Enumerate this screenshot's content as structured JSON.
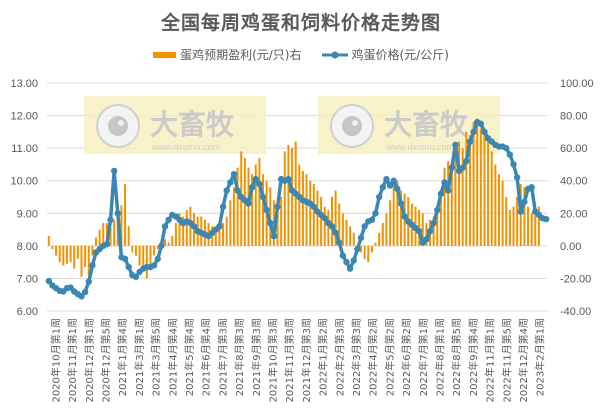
{
  "title": "全国每周鸡蛋和饲料价格走势图",
  "legend": {
    "bar_label": "蛋鸡预期盈利(元/只)右",
    "line_label": "鸡蛋价格(元/公斤)"
  },
  "colors": {
    "bar": "#F39200",
    "line": "#3B87B4",
    "grid": "#D9D9D9",
    "watermark_bg": "#F7F0C3"
  },
  "watermark": {
    "text": "大畜牧",
    "url": "www.dxumu.com"
  },
  "chart_data": {
    "type": "bar+line",
    "title": "全国每周鸡蛋和饲料价格走势图",
    "xlabel": "",
    "ylabel_left": "",
    "ylabel_right": "",
    "ylim_left": [
      6,
      13
    ],
    "ylim_right": [
      -40,
      100
    ],
    "left_ticks": [
      "13.00",
      "12.00",
      "11.00",
      "10.00",
      "9.00",
      "8.00",
      "7.00",
      "6.00"
    ],
    "right_ticks": [
      "100.00",
      "80.00",
      "60.00",
      "40.00",
      "20.00",
      "0.00",
      "-20.00",
      "-40.00"
    ],
    "grid": true,
    "legend_position": "top",
    "x_tick_labels": [
      "2020年10月第1周",
      "2020年11月第1周",
      "2020年12月第1周",
      "2020年12月第5周",
      "2021年1月第4周",
      "2021年3月第1周",
      "2021年3月第5周",
      "2021年4月第4周",
      "2021年5月第4周",
      "2021年6月第4周",
      "2021年7月第3周",
      "2021年8月第3周",
      "2021年9月第3周",
      "2021年10月第3周",
      "2021年11月第3周",
      "2021年12月第3周",
      "2022年1月第2周",
      "2022年2月第3周",
      "2022年3月第3周",
      "2022年4月第2周",
      "2022年5月第2周",
      "2022年6月第2周",
      "2022年7月第1周",
      "2022年8月第1周",
      "2022年8月第5周",
      "2022年9月第4周",
      "2022年11月第1周",
      "2022年11月第5周",
      "2022年12月第4周",
      "2023年2月第1周"
    ],
    "series": [
      {
        "name": "蛋鸡预期盈利(元/只)右",
        "type": "bar",
        "axis": "right",
        "values": [
          6,
          -2,
          -6,
          -10,
          -12,
          -11,
          -10,
          -14,
          -8,
          -19,
          -13,
          -18,
          -6,
          5,
          10,
          14,
          14,
          11,
          16,
          20,
          25,
          38,
          12,
          -4,
          -6,
          -12,
          -14,
          -20,
          -12,
          -6,
          -2,
          2,
          4,
          2,
          6,
          14,
          20,
          18,
          22,
          24,
          20,
          18,
          18,
          16,
          14,
          12,
          8,
          12,
          14,
          18,
          28,
          36,
          48,
          58,
          54,
          48,
          44,
          50,
          54,
          44,
          40,
          36,
          28,
          22,
          30,
          58,
          62,
          60,
          64,
          50,
          46,
          44,
          40,
          38,
          34,
          30,
          24,
          22,
          30,
          34,
          26,
          20,
          16,
          12,
          8,
          -2,
          -4,
          -8,
          -10,
          -4,
          2,
          8,
          14,
          20,
          28,
          38,
          40,
          34,
          32,
          30,
          26,
          24,
          22,
          20,
          14,
          16,
          18,
          22,
          30,
          48,
          52,
          48,
          58,
          64,
          60,
          70,
          68,
          76,
          78,
          72,
          68,
          64,
          58,
          50,
          44,
          40,
          30,
          22,
          24,
          30,
          38,
          36,
          24,
          20,
          20,
          24
        ]
      },
      {
        "name": "鸡蛋价格(元/公斤)",
        "type": "line",
        "axis": "left",
        "values": [
          6.92,
          6.78,
          6.7,
          6.62,
          6.6,
          6.7,
          6.72,
          6.6,
          6.52,
          6.45,
          6.58,
          6.9,
          7.4,
          7.8,
          7.9,
          8.0,
          8.05,
          8.8,
          10.3,
          9.0,
          7.65,
          7.6,
          7.35,
          7.1,
          7.05,
          7.2,
          7.3,
          7.35,
          7.35,
          7.4,
          7.6,
          8.0,
          8.6,
          8.8,
          8.95,
          8.9,
          8.8,
          8.7,
          8.75,
          8.7,
          8.6,
          8.45,
          8.4,
          8.35,
          8.3,
          8.4,
          8.5,
          8.6,
          9.2,
          9.7,
          9.95,
          10.2,
          9.7,
          9.5,
          9.4,
          9.3,
          9.8,
          10.05,
          9.9,
          9.5,
          9.1,
          8.7,
          8.3,
          9.2,
          10.05,
          10.0,
          10.05,
          9.7,
          9.6,
          9.5,
          9.4,
          9.35,
          9.3,
          9.2,
          9.05,
          8.95,
          8.85,
          8.7,
          8.6,
          8.4,
          8.1,
          7.7,
          7.5,
          7.3,
          7.55,
          7.9,
          8.25,
          8.6,
          8.75,
          8.8,
          9.0,
          9.5,
          9.8,
          10.05,
          9.85,
          10.0,
          9.75,
          9.3,
          8.9,
          8.75,
          8.65,
          8.55,
          8.45,
          8.1,
          8.2,
          8.45,
          8.7,
          9.1,
          9.6,
          9.95,
          9.7,
          10.4,
          11.1,
          10.3,
          10.4,
          10.6,
          11.2,
          11.5,
          11.8,
          11.75,
          11.5,
          11.3,
          11.2,
          11.1,
          11.05,
          11.05,
          11.0,
          10.8,
          10.5,
          10.1,
          9.05,
          9.35,
          9.75,
          9.8,
          9.05,
          8.95,
          8.85,
          8.82
        ]
      }
    ]
  }
}
